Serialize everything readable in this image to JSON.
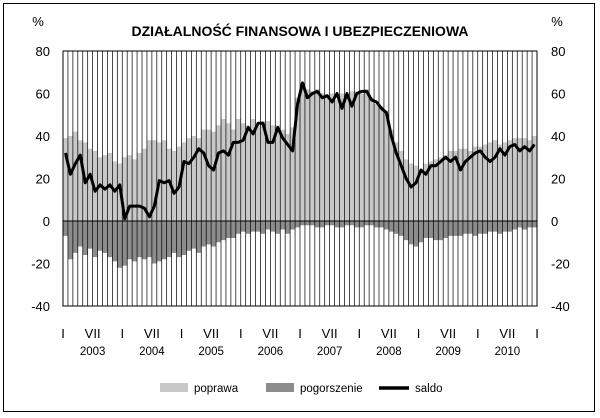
{
  "chart_data": {
    "type": "bar",
    "title": "DZIAŁALNOŚĆ FINANSOWA I UBEZPIECZENIOWA",
    "ylabel_left": "%",
    "ylabel_right": "%",
    "ylim": [
      -40,
      80
    ],
    "y_ticks": [
      -40,
      -20,
      0,
      20,
      40,
      60,
      80
    ],
    "grid": "vertical lines per month",
    "x_month_labels": [
      "I",
      "VII"
    ],
    "years": [
      "2003",
      "2004",
      "2005",
      "2006",
      "2007",
      "2008",
      "2009",
      "2010"
    ],
    "legend_position": "bottom",
    "series": [
      {
        "name": "poprawa",
        "type": "bar",
        "color": "#c8c8c8",
        "values": [
          39,
          40,
          42,
          38,
          37,
          34,
          33,
          30,
          31,
          32,
          28,
          27,
          30,
          31,
          29,
          32,
          34,
          38,
          38,
          37,
          38,
          34,
          33,
          35,
          37,
          39,
          40,
          39,
          43,
          43,
          42,
          45,
          48,
          46,
          43,
          48,
          46,
          45,
          48,
          45,
          47,
          47,
          45,
          45,
          43,
          41,
          44,
          58,
          65,
          62,
          61,
          62,
          60,
          59,
          60,
          57,
          60,
          58,
          61,
          61,
          60,
          62,
          58,
          55,
          54,
          52,
          43,
          37,
          33,
          29,
          27,
          26,
          23,
          27,
          28,
          29,
          30,
          31,
          33,
          33,
          34,
          34,
          33,
          35,
          35,
          36,
          37,
          38,
          36,
          37,
          38,
          39,
          39,
          39,
          38,
          40
        ]
      },
      {
        "name": "pogorszenie",
        "type": "bar",
        "color": "#8c8c8c",
        "values": [
          -7,
          -18,
          -15,
          -12,
          -16,
          -13,
          -17,
          -14,
          -15,
          -17,
          -19,
          -22,
          -21,
          -18,
          -19,
          -17,
          -18,
          -17,
          -20,
          -19,
          -18,
          -17,
          -15,
          -17,
          -16,
          -14,
          -13,
          -15,
          -12,
          -11,
          -12,
          -10,
          -9,
          -8,
          -8,
          -6,
          -5,
          -6,
          -5,
          -5,
          -6,
          -4,
          -5,
          -6,
          -4,
          -6,
          -4,
          -3,
          -2,
          -2,
          -2,
          -3,
          -3,
          -2,
          -2,
          -3,
          -3,
          -2,
          -2,
          -3,
          -3,
          -2,
          -2,
          -3,
          -3,
          -4,
          -5,
          -6,
          -7,
          -9,
          -11,
          -12,
          -10,
          -8,
          -8,
          -9,
          -9,
          -8,
          -7,
          -7,
          -7,
          -6,
          -6,
          -7,
          -6,
          -6,
          -5,
          -5,
          -6,
          -5,
          -5,
          -4,
          -3,
          -4,
          -3,
          -3
        ]
      },
      {
        "name": "saldo",
        "type": "line",
        "color": "#000000",
        "values": [
          32,
          22,
          27,
          31,
          18,
          22,
          14,
          17,
          15,
          17,
          14,
          17,
          1,
          7,
          7,
          7,
          6,
          2,
          7,
          19,
          18,
          19,
          13,
          16,
          28,
          27,
          30,
          34,
          32,
          26,
          24,
          32,
          33,
          31,
          37,
          37,
          38,
          44,
          41,
          46,
          46,
          37,
          37,
          44,
          39,
          36,
          33,
          55,
          65,
          58,
          60,
          61,
          58,
          59,
          56,
          60,
          53,
          60,
          54,
          60,
          61,
          61,
          57,
          56,
          53,
          51,
          40,
          32,
          26,
          20,
          16,
          18,
          24,
          22,
          26,
          26,
          28,
          30,
          28,
          30,
          24,
          28,
          30,
          32,
          33,
          30,
          28,
          30,
          34,
          31,
          35,
          36,
          33,
          35,
          33,
          36
        ]
      }
    ]
  }
}
